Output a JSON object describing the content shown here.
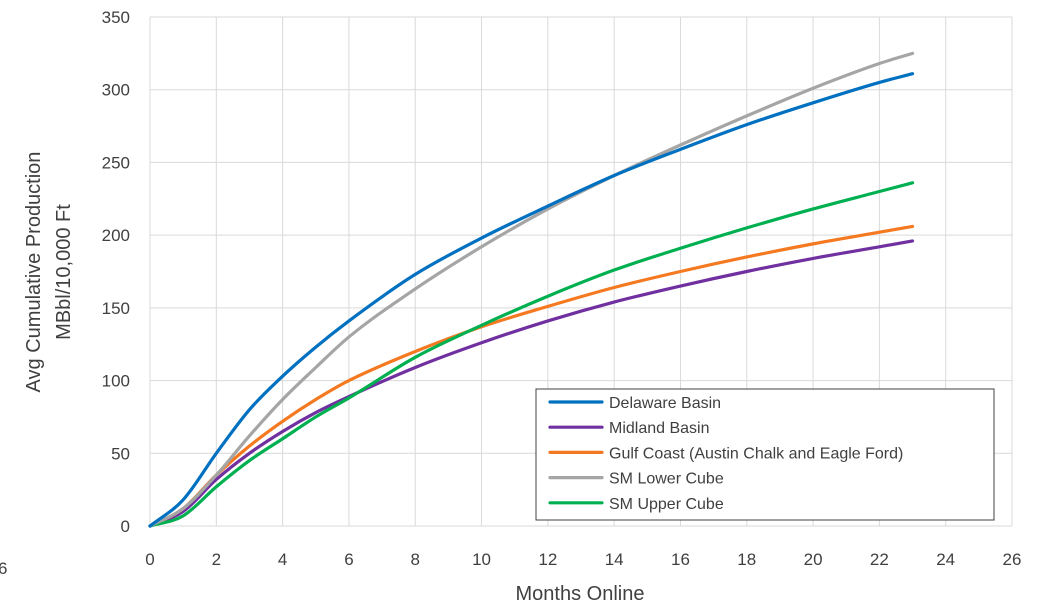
{
  "chart_data": {
    "type": "line",
    "title": "",
    "xlabel": "Months Online",
    "ylabel_lines": [
      "Avg Cumulative Production",
      "MBbl/10,000 Ft"
    ],
    "xlim": [
      0,
      26
    ],
    "ylim": [
      0,
      350
    ],
    "x_ticks": [
      0,
      2,
      4,
      6,
      8,
      10,
      12,
      14,
      16,
      18,
      20,
      22,
      24,
      26
    ],
    "y_ticks": [
      0,
      50,
      100,
      150,
      200,
      250,
      300,
      350
    ],
    "stray_label": "6",
    "grid": true,
    "legend_position": "bottom-right",
    "series": [
      {
        "name": "Delaware Basin",
        "color": "#0070c0",
        "x": [
          0,
          1,
          2,
          3,
          4,
          5,
          6,
          8,
          10,
          12,
          14,
          16,
          18,
          20,
          22,
          23
        ],
        "y": [
          0,
          18,
          50,
          80,
          103,
          123,
          141,
          173,
          198,
          220,
          241,
          259,
          276,
          291,
          305,
          311
        ]
      },
      {
        "name": "Midland Basin",
        "color": "#7030a0",
        "x": [
          0,
          1,
          2,
          3,
          4,
          5,
          6,
          8,
          10,
          12,
          14,
          16,
          18,
          20,
          22,
          23
        ],
        "y": [
          0,
          10,
          32,
          50,
          65,
          78,
          89,
          109,
          126,
          141,
          154,
          165,
          175,
          184,
          192,
          196
        ]
      },
      {
        "name": "Gulf Coast (Austin Chalk and Eagle Ford)",
        "color": "#f47920",
        "x": [
          0,
          1,
          2,
          3,
          4,
          5,
          6,
          8,
          10,
          12,
          14,
          16,
          18,
          20,
          22,
          23
        ],
        "y": [
          0,
          12,
          35,
          55,
          72,
          87,
          100,
          120,
          137,
          151,
          164,
          175,
          185,
          194,
          202,
          206
        ]
      },
      {
        "name": "SM Lower Cube",
        "color": "#a5a5a5",
        "x": [
          0,
          1,
          2,
          3,
          4,
          5,
          6,
          8,
          10,
          12,
          14,
          16,
          18,
          20,
          22,
          23
        ],
        "y": [
          0,
          12,
          35,
          62,
          87,
          109,
          130,
          163,
          192,
          218,
          241,
          262,
          282,
          301,
          318,
          325
        ]
      },
      {
        "name": "SM Upper Cube",
        "color": "#00b050",
        "x": [
          0,
          1,
          2,
          3,
          4,
          5,
          6,
          8,
          10,
          12,
          14,
          16,
          18,
          20,
          22,
          23
        ],
        "y": [
          0,
          7,
          27,
          45,
          60,
          75,
          88,
          116,
          138,
          158,
          176,
          191,
          205,
          218,
          230,
          236
        ]
      }
    ]
  }
}
